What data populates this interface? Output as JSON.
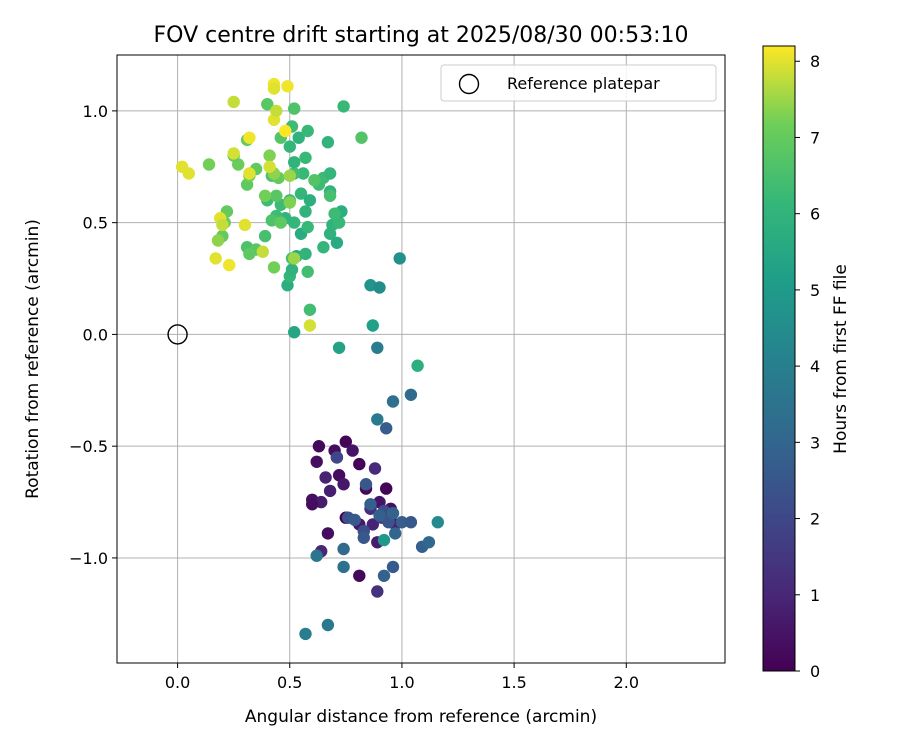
{
  "chart_data": {
    "type": "scatter",
    "title": "FOV centre drift starting at 2025/08/30 00:53:10",
    "xlabel": "Angular distance from reference (arcmin)",
    "ylabel": "Rotation from reference (arcmin)",
    "xlim": [
      -0.27,
      2.44
    ],
    "ylim": [
      -1.47,
      1.25
    ],
    "xticks": [
      0.0,
      0.5,
      1.0,
      1.5,
      2.0
    ],
    "xtick_labels": [
      "0.0",
      "0.5",
      "1.0",
      "1.5",
      "2.0"
    ],
    "yticks": [
      -1.0,
      -0.5,
      0.0,
      0.5,
      1.0
    ],
    "ytick_labels": [
      "−1.0",
      "−0.5",
      "0.0",
      "0.5",
      "1.0"
    ],
    "grid": true,
    "legend": {
      "placement": "upper-right",
      "entries": [
        "Reference platepar"
      ]
    },
    "reference_point": {
      "x": 0.0,
      "y": 0.0,
      "marker": "open-circle"
    },
    "colorbar": {
      "label": "Hours from first FF file",
      "colormap": "viridis",
      "range": [
        0,
        8.2
      ],
      "ticks": [
        0,
        1,
        2,
        3,
        4,
        5,
        6,
        7,
        8
      ],
      "tick_labels": [
        "0",
        "1",
        "2",
        "3",
        "4",
        "5",
        "6",
        "7",
        "8"
      ]
    },
    "points": [
      [
        0.63,
        -0.5,
        0.2
      ],
      [
        0.7,
        -0.52,
        0.3
      ],
      [
        0.75,
        -0.48,
        0.1
      ],
      [
        0.62,
        -0.57,
        0.4
      ],
      [
        0.71,
        -0.55,
        0.2
      ],
      [
        0.78,
        -0.52,
        0.5
      ],
      [
        0.81,
        -0.58,
        0.1
      ],
      [
        0.72,
        -0.63,
        0.3
      ],
      [
        0.74,
        -0.67,
        0.6
      ],
      [
        0.66,
        -0.64,
        0.9
      ],
      [
        0.84,
        -0.69,
        0.2
      ],
      [
        0.88,
        -0.6,
        1.1
      ],
      [
        0.68,
        -0.7,
        0.8
      ],
      [
        0.6,
        -0.74,
        0.4
      ],
      [
        0.64,
        -0.75,
        0.7
      ],
      [
        0.6,
        -0.76,
        0.3
      ],
      [
        0.93,
        -0.69,
        0.1
      ],
      [
        0.9,
        -0.75,
        0.5
      ],
      [
        0.75,
        -0.82,
        0.0
      ],
      [
        0.81,
        -0.85,
        0.6
      ],
      [
        0.86,
        -0.78,
        1.2
      ],
      [
        0.87,
        -0.85,
        0.9
      ],
      [
        0.95,
        -0.78,
        0.4
      ],
      [
        0.91,
        -0.82,
        1.6
      ],
      [
        0.97,
        -0.85,
        0.8
      ],
      [
        0.67,
        -0.89,
        0.3
      ],
      [
        0.89,
        -0.93,
        0.7
      ],
      [
        0.64,
        -0.97,
        1.0
      ],
      [
        0.81,
        -1.08,
        0.2
      ],
      [
        0.89,
        -1.15,
        1.3
      ],
      [
        0.71,
        -0.55,
        2.0
      ],
      [
        0.76,
        -0.82,
        2.3
      ],
      [
        0.79,
        -0.83,
        2.6
      ],
      [
        0.83,
        -0.88,
        2.2
      ],
      [
        0.84,
        -0.67,
        2.5
      ],
      [
        0.86,
        -0.76,
        2.8
      ],
      [
        0.92,
        -0.79,
        2.1
      ],
      [
        0.94,
        -0.84,
        2.4
      ],
      [
        0.96,
        -0.8,
        2.9
      ],
      [
        1.0,
        -0.84,
        2.7
      ],
      [
        0.83,
        -0.91,
        2.5
      ],
      [
        0.9,
        -0.81,
        2.8
      ],
      [
        0.97,
        -0.89,
        3.0
      ],
      [
        1.04,
        -0.84,
        2.5
      ],
      [
        1.09,
        -0.95,
        2.8
      ],
      [
        1.12,
        -0.93,
        3.1
      ],
      [
        0.96,
        -1.04,
        2.6
      ],
      [
        0.92,
        -1.08,
        2.9
      ],
      [
        0.93,
        -0.42,
        2.7
      ],
      [
        0.74,
        -0.96,
        3.2
      ],
      [
        0.62,
        -0.99,
        3.6
      ],
      [
        0.74,
        -1.04,
        3.4
      ],
      [
        0.89,
        -0.38,
        3.8
      ],
      [
        0.96,
        -0.3,
        3.4
      ],
      [
        1.04,
        -0.27,
        3.2
      ],
      [
        0.67,
        -1.3,
        3.7
      ],
      [
        0.57,
        -1.34,
        3.9
      ],
      [
        1.16,
        -0.84,
        4.4
      ],
      [
        0.92,
        -0.92,
        4.9
      ],
      [
        0.89,
        -0.06,
        3.9
      ],
      [
        0.72,
        -0.06,
        5.3
      ],
      [
        1.07,
        -0.14,
        5.8
      ],
      [
        0.99,
        0.34,
        4.6
      ],
      [
        0.86,
        0.22,
        4.8
      ],
      [
        0.9,
        0.21,
        4.5
      ],
      [
        0.87,
        0.04,
        5.2
      ],
      [
        0.52,
        0.01,
        5.4
      ],
      [
        0.49,
        0.22,
        5.8
      ],
      [
        0.5,
        0.26,
        6.1
      ],
      [
        0.58,
        0.28,
        6.4
      ],
      [
        0.51,
        0.29,
        5.9
      ],
      [
        0.53,
        0.35,
        5.6
      ],
      [
        0.57,
        0.36,
        6.0
      ],
      [
        0.51,
        0.34,
        6.5
      ],
      [
        0.55,
        0.45,
        5.7
      ],
      [
        0.65,
        0.39,
        6.1
      ],
      [
        0.68,
        0.45,
        5.9
      ],
      [
        0.71,
        0.41,
        5.6
      ],
      [
        0.69,
        0.49,
        6.0
      ],
      [
        0.72,
        0.5,
        6.2
      ],
      [
        0.73,
        0.55,
        5.8
      ],
      [
        0.7,
        0.54,
        6.3
      ],
      [
        0.57,
        0.55,
        6.0
      ],
      [
        0.58,
        0.48,
        6.2
      ],
      [
        0.52,
        0.5,
        6.1
      ],
      [
        0.48,
        0.52,
        6.0
      ],
      [
        0.46,
        0.58,
        6.3
      ],
      [
        0.5,
        0.6,
        6.4
      ],
      [
        0.55,
        0.63,
        6.1
      ],
      [
        0.59,
        0.6,
        5.8
      ],
      [
        0.63,
        0.67,
        6.3
      ],
      [
        0.68,
        0.64,
        6.0
      ],
      [
        0.68,
        0.62,
        6.5
      ],
      [
        0.65,
        0.7,
        6.3
      ],
      [
        0.68,
        0.72,
        6.1
      ],
      [
        0.61,
        0.69,
        6.7
      ],
      [
        0.56,
        0.72,
        6.2
      ],
      [
        0.52,
        0.72,
        6.4
      ],
      [
        0.52,
        0.77,
        6.0
      ],
      [
        0.57,
        0.79,
        6.2
      ],
      [
        0.5,
        0.84,
        6.1
      ],
      [
        0.54,
        0.88,
        5.9
      ],
      [
        0.58,
        0.91,
        6.2
      ],
      [
        0.67,
        0.86,
        6.0
      ],
      [
        0.51,
        0.93,
        6.3
      ],
      [
        0.52,
        1.01,
        6.6
      ],
      [
        0.46,
        0.88,
        6.7
      ],
      [
        0.74,
        1.02,
        6.2
      ],
      [
        0.82,
        0.88,
        6.7
      ],
      [
        0.4,
        1.03,
        6.8
      ],
      [
        0.42,
        0.71,
        6.6
      ],
      [
        0.45,
        0.7,
        7.0
      ],
      [
        0.4,
        0.6,
        6.3
      ],
      [
        0.44,
        0.62,
        6.8
      ],
      [
        0.44,
        0.53,
        6.3
      ],
      [
        0.42,
        0.51,
        6.6
      ],
      [
        0.46,
        0.5,
        6.9
      ],
      [
        0.39,
        0.44,
        6.5
      ],
      [
        0.31,
        0.39,
        6.6
      ],
      [
        0.35,
        0.38,
        6.8
      ],
      [
        0.32,
        0.36,
        6.9
      ],
      [
        0.2,
        0.44,
        7.0
      ],
      [
        0.21,
        0.5,
        7.1
      ],
      [
        0.22,
        0.55,
        7.0
      ],
      [
        0.39,
        0.62,
        7.2
      ],
      [
        0.31,
        0.67,
        6.9
      ],
      [
        0.35,
        0.74,
        6.9
      ],
      [
        0.32,
        0.71,
        7.2
      ],
      [
        0.27,
        0.76,
        7.1
      ],
      [
        0.25,
        0.8,
        7.0
      ],
      [
        0.31,
        0.87,
        7.0
      ],
      [
        0.41,
        0.8,
        7.3
      ],
      [
        0.43,
        0.72,
        7.4
      ],
      [
        0.5,
        0.71,
        7.5
      ],
      [
        0.5,
        0.59,
        7.3
      ],
      [
        0.18,
        0.42,
        7.4
      ],
      [
        0.43,
        0.3,
        7.2
      ],
      [
        0.52,
        0.34,
        7.5
      ],
      [
        0.14,
        0.76,
        7.2
      ],
      [
        0.59,
        0.11,
        6.4
      ],
      [
        0.02,
        0.75,
        8.0
      ],
      [
        0.05,
        0.72,
        8.0
      ],
      [
        0.17,
        0.34,
        8.0
      ],
      [
        0.23,
        0.31,
        8.1
      ],
      [
        0.19,
        0.52,
        8.0
      ],
      [
        0.2,
        0.49,
        7.8
      ],
      [
        0.3,
        0.49,
        8.0
      ],
      [
        0.32,
        0.72,
        8.0
      ],
      [
        0.25,
        0.81,
        7.9
      ],
      [
        0.32,
        0.88,
        8.1
      ],
      [
        0.38,
        0.37,
        7.8
      ],
      [
        0.41,
        0.75,
        7.9
      ],
      [
        0.43,
        0.96,
        8.0
      ],
      [
        0.44,
        1.0,
        7.8
      ],
      [
        0.48,
        0.91,
        8.2
      ],
      [
        0.49,
        1.11,
        8.1
      ],
      [
        0.43,
        1.12,
        8.1
      ],
      [
        0.43,
        1.1,
        8.0
      ],
      [
        0.25,
        1.04,
        7.8
      ],
      [
        0.59,
        0.04,
        7.9
      ]
    ]
  }
}
